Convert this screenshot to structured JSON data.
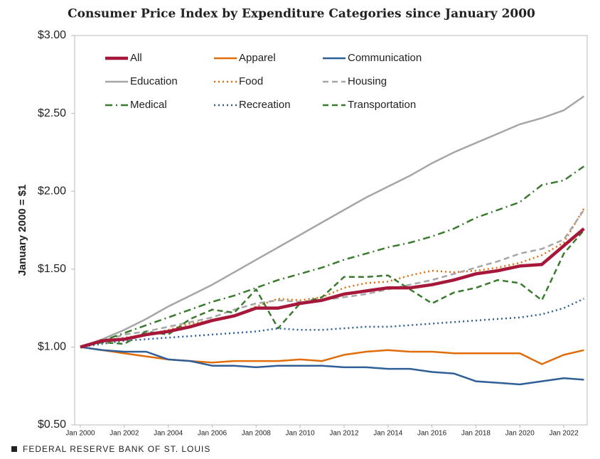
{
  "chart_data": {
    "type": "line",
    "title": "Consumer Price Index by Expenditure Categories since January 2000",
    "y_label": "January 2000 = $1",
    "source": "FEDERAL RESERVE BANK OF ST. LOUIS",
    "x": [
      "2000-01",
      "2001-01",
      "2002-01",
      "2003-01",
      "2004-01",
      "2005-01",
      "2006-01",
      "2007-01",
      "2008-01",
      "2009-01",
      "2010-01",
      "2011-01",
      "2012-01",
      "2013-01",
      "2014-01",
      "2015-01",
      "2016-01",
      "2017-01",
      "2018-01",
      "2019-01",
      "2020-01",
      "2021-01",
      "2022-01",
      "2022-12"
    ],
    "xlim": [
      "2000-01",
      "2022-12"
    ],
    "xticks": [
      {
        "value": "2000-01",
        "label": "Jan 2000"
      },
      {
        "value": "2002-01",
        "label": "Jan 2002"
      },
      {
        "value": "2004-01",
        "label": "Jan 2004"
      },
      {
        "value": "2006-01",
        "label": "Jan 2006"
      },
      {
        "value": "2008-01",
        "label": "Jan 2008"
      },
      {
        "value": "2010-01",
        "label": "Jan 2010"
      },
      {
        "value": "2012-01",
        "label": "Jan 2012"
      },
      {
        "value": "2014-01",
        "label": "Jan 2014"
      },
      {
        "value": "2016-01",
        "label": "Jan 2016"
      },
      {
        "value": "2018-01",
        "label": "Jan 2018"
      },
      {
        "value": "2020-01",
        "label": "Jan 2020"
      },
      {
        "value": "2022-01",
        "label": "Jan 2022"
      }
    ],
    "ylim": [
      0.5,
      3
    ],
    "yticks": [
      {
        "value": 0.5,
        "label": "$0.50"
      },
      {
        "value": 1,
        "label": "$1.00"
      },
      {
        "value": 1.5,
        "label": "$1.50"
      },
      {
        "value": 2,
        "label": "$2.00"
      },
      {
        "value": 2.5,
        "label": "$2.50"
      },
      {
        "value": 3,
        "label": "$3.00"
      }
    ],
    "series": [
      {
        "name": "All",
        "color": "#a6173a",
        "style": "thick",
        "values": [
          1.0,
          1.04,
          1.05,
          1.08,
          1.1,
          1.13,
          1.17,
          1.2,
          1.25,
          1.25,
          1.28,
          1.3,
          1.34,
          1.36,
          1.38,
          1.38,
          1.4,
          1.43,
          1.47,
          1.49,
          1.52,
          1.53,
          1.65,
          1.76
        ]
      },
      {
        "name": "Apparel",
        "color": "#e06c0a",
        "style": "solid",
        "values": [
          1.0,
          0.98,
          0.96,
          0.94,
          0.92,
          0.91,
          0.9,
          0.91,
          0.91,
          0.91,
          0.92,
          0.91,
          0.95,
          0.97,
          0.98,
          0.97,
          0.97,
          0.96,
          0.96,
          0.96,
          0.96,
          0.89,
          0.95,
          0.98
        ]
      },
      {
        "name": "Communication",
        "color": "#2f5f96",
        "style": "solid",
        "values": [
          1.0,
          0.98,
          0.97,
          0.97,
          0.92,
          0.91,
          0.88,
          0.88,
          0.87,
          0.88,
          0.88,
          0.88,
          0.87,
          0.87,
          0.86,
          0.86,
          0.84,
          0.83,
          0.78,
          0.77,
          0.76,
          0.78,
          0.8,
          0.79
        ]
      },
      {
        "name": "Education",
        "color": "#a6a6a6",
        "style": "solid",
        "values": [
          1.0,
          1.05,
          1.11,
          1.18,
          1.26,
          1.33,
          1.4,
          1.48,
          1.56,
          1.64,
          1.72,
          1.8,
          1.88,
          1.96,
          2.03,
          2.1,
          2.18,
          2.25,
          2.31,
          2.37,
          2.43,
          2.47,
          2.52,
          2.61
        ]
      },
      {
        "name": "Food",
        "color": "#e06c0a",
        "style": "dot",
        "values": [
          1.0,
          1.03,
          1.06,
          1.08,
          1.11,
          1.15,
          1.17,
          1.2,
          1.26,
          1.31,
          1.3,
          1.32,
          1.38,
          1.41,
          1.42,
          1.46,
          1.49,
          1.48,
          1.49,
          1.51,
          1.54,
          1.59,
          1.67,
          1.89
        ]
      },
      {
        "name": "Housing",
        "color": "#a6a6a6",
        "style": "dash",
        "values": [
          1.0,
          1.04,
          1.08,
          1.1,
          1.13,
          1.16,
          1.19,
          1.24,
          1.28,
          1.3,
          1.29,
          1.3,
          1.32,
          1.34,
          1.37,
          1.4,
          1.43,
          1.47,
          1.51,
          1.55,
          1.6,
          1.63,
          1.69,
          1.88
        ]
      },
      {
        "name": "Medical",
        "color": "#3a7a2f",
        "style": "dashdot",
        "values": [
          1.0,
          1.04,
          1.09,
          1.14,
          1.19,
          1.24,
          1.29,
          1.33,
          1.38,
          1.43,
          1.47,
          1.51,
          1.56,
          1.6,
          1.64,
          1.67,
          1.71,
          1.76,
          1.83,
          1.88,
          1.93,
          2.04,
          2.07,
          2.16
        ]
      },
      {
        "name": "Recreation",
        "color": "#2f5f96",
        "style": "dot",
        "values": [
          1.0,
          1.02,
          1.04,
          1.05,
          1.06,
          1.07,
          1.08,
          1.09,
          1.1,
          1.12,
          1.11,
          1.11,
          1.12,
          1.13,
          1.13,
          1.14,
          1.15,
          1.16,
          1.17,
          1.18,
          1.19,
          1.21,
          1.25,
          1.31
        ]
      },
      {
        "name": "Transportation",
        "color": "#3a7a2f",
        "style": "dash",
        "values": [
          1.0,
          1.03,
          1.02,
          1.1,
          1.08,
          1.18,
          1.24,
          1.22,
          1.37,
          1.12,
          1.28,
          1.32,
          1.45,
          1.45,
          1.46,
          1.37,
          1.28,
          1.35,
          1.38,
          1.43,
          1.41,
          1.3,
          1.6,
          1.75
        ]
      }
    ]
  }
}
